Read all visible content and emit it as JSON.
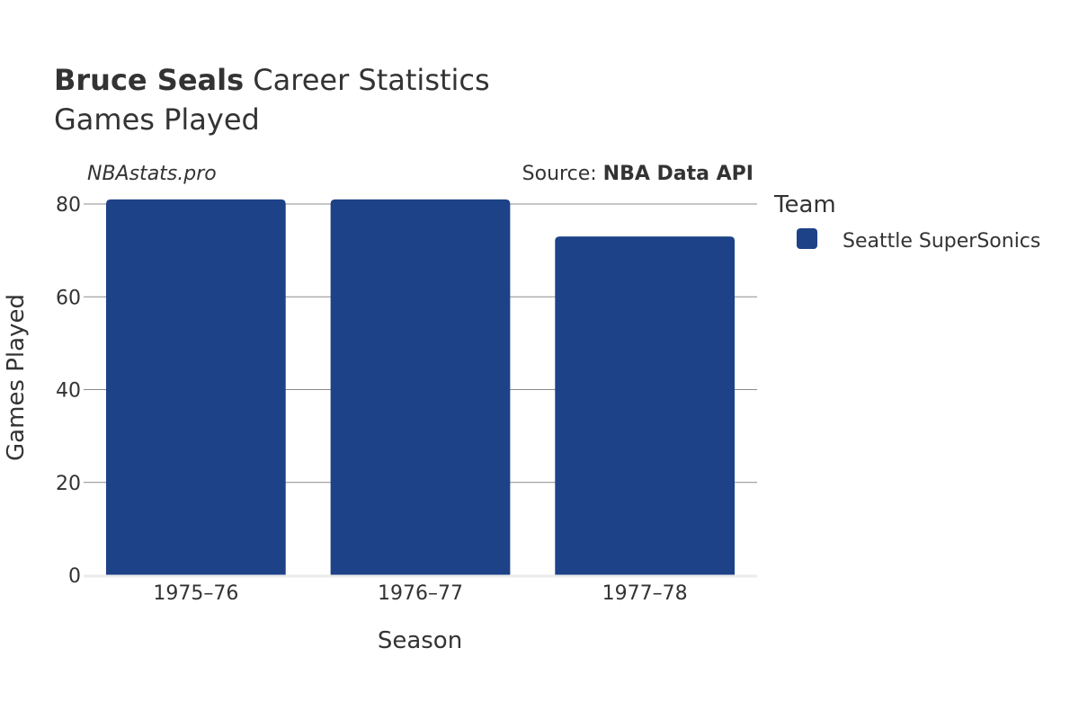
{
  "title": {
    "player": "Bruce Seals",
    "rest": "Career Statistics",
    "subtitle": "Games Played"
  },
  "credits": {
    "site": "NBAstats.pro",
    "source_prefix": "Source:",
    "source_name": "NBA Data API"
  },
  "legend": {
    "title": "Team",
    "items": [
      {
        "label": "Seattle SuperSonics",
        "color": "#1d4287"
      }
    ]
  },
  "chart_data": {
    "type": "bar",
    "categories": [
      "1975–76",
      "1976–77",
      "1977–78"
    ],
    "series": [
      {
        "name": "Seattle SuperSonics",
        "values": [
          81,
          81,
          73
        ],
        "color": "#1d4287"
      }
    ],
    "xlabel": "Season",
    "ylabel": "Games Played",
    "ylim": [
      0,
      80
    ],
    "yticks": [
      0,
      20,
      40,
      60,
      80
    ],
    "grid": true,
    "legend_position": "right"
  }
}
